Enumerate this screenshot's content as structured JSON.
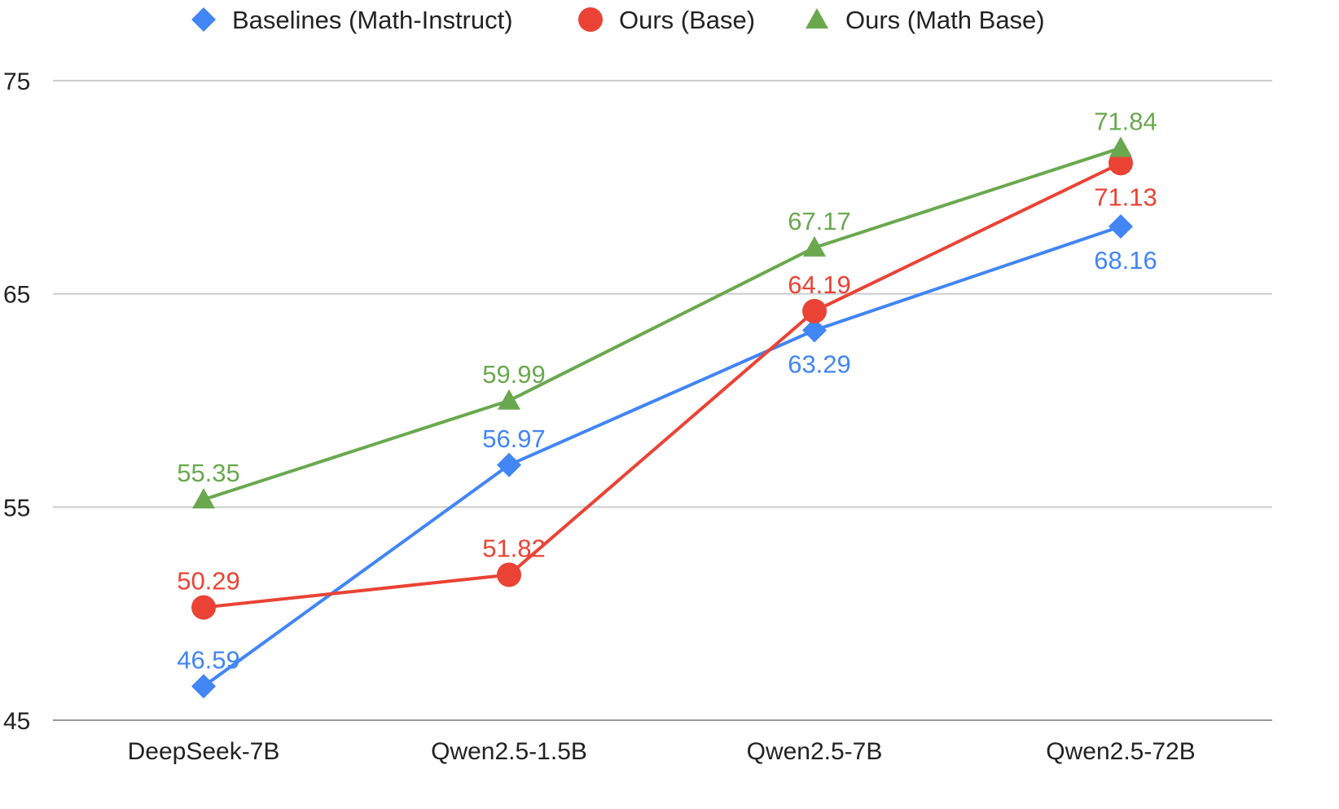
{
  "chart_data": {
    "type": "line",
    "title": "",
    "xlabel": "",
    "ylabel": "",
    "categories": [
      "DeepSeek-7B",
      "Qwen2.5-1.5B",
      "Qwen2.5-7B",
      "Qwen2.5-72B"
    ],
    "ylim": [
      45,
      75
    ],
    "yticks": [
      45,
      55,
      65,
      75
    ],
    "grid": true,
    "legend_position": "top",
    "series": [
      {
        "name": "Baselines (Math-Instruct)",
        "marker": "diamond",
        "color": "#4285F4",
        "values": [
          46.59,
          56.97,
          63.29,
          68.16
        ],
        "label_pos": [
          "above",
          "above",
          "below",
          "below"
        ]
      },
      {
        "name": "Ours (Base)",
        "marker": "circle",
        "color": "#EA4335",
        "values": [
          50.29,
          51.82,
          64.19,
          71.13
        ],
        "label_pos": [
          "above",
          "above",
          "above",
          "below"
        ]
      },
      {
        "name": "Ours (Math Base)",
        "marker": "triangle",
        "color": "#6AA84F",
        "values": [
          55.35,
          59.99,
          67.17,
          71.84
        ],
        "label_pos": [
          "above",
          "above",
          "above",
          "above"
        ]
      }
    ]
  }
}
